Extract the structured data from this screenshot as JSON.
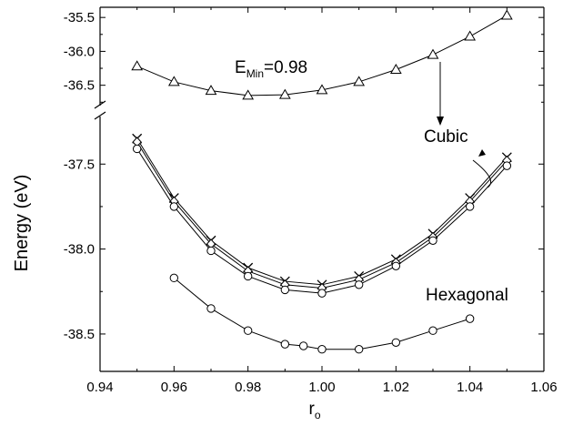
{
  "chart_data": {
    "type": "line",
    "xlabel": "r",
    "xlabel_sub": "o",
    "ylabel": "Energy (eV)",
    "x_ticks": [
      0.94,
      0.96,
      0.98,
      1.0,
      1.02,
      1.04,
      1.06
    ],
    "x_tick_labels": [
      "0.94",
      "0.96",
      "0.98",
      "1.00",
      "1.02",
      "1.04",
      "1.06"
    ],
    "xlim": [
      0.94,
      1.06
    ],
    "y_axis_break": true,
    "upper_ylim": [
      -36.8,
      -35.35
    ],
    "upper_ticks": [
      -35.5,
      -36.0,
      -36.5
    ],
    "upper_tick_labels": [
      "-35.5",
      "-36.0",
      "-36.5"
    ],
    "lower_ylim": [
      -38.72,
      -37.22
    ],
    "lower_ticks": [
      -37.5,
      -38.0,
      -38.5
    ],
    "lower_tick_labels": [
      "-37.5",
      "-38.0",
      "-38.5"
    ],
    "grid": false,
    "annotations": {
      "emin_prefix": "E",
      "emin_sub": "Min",
      "emin_suffix": "=0.98",
      "cubic": "Cubic",
      "hexagonal": "Hexagonal"
    },
    "series": [
      {
        "marker": "triangle",
        "panel": "upper",
        "x": [
          0.95,
          0.96,
          0.97,
          0.98,
          0.99,
          1.0,
          1.01,
          1.02,
          1.03,
          1.04,
          1.05
        ],
        "y": [
          -36.22,
          -36.45,
          -36.58,
          -36.65,
          -36.64,
          -36.57,
          -36.45,
          -36.27,
          -36.05,
          -35.78,
          -35.47
        ]
      },
      {
        "marker": "x",
        "panel": "lower",
        "x": [
          0.95,
          0.96,
          0.97,
          0.98,
          0.99,
          1.0,
          1.01,
          1.02,
          1.03,
          1.04,
          1.05
        ],
        "y": [
          -37.35,
          -37.7,
          -37.95,
          -38.11,
          -38.19,
          -38.21,
          -38.16,
          -38.06,
          -37.91,
          -37.7,
          -37.46
        ]
      },
      {
        "marker": "diamond",
        "panel": "lower",
        "x": [
          0.95,
          0.96,
          0.97,
          0.98,
          0.99,
          1.0,
          1.01,
          1.02,
          1.03,
          1.04,
          1.05
        ],
        "y": [
          -37.37,
          -37.72,
          -37.97,
          -38.13,
          -38.21,
          -38.23,
          -38.18,
          -38.08,
          -37.93,
          -37.72,
          -37.48
        ]
      },
      {
        "marker": "circle",
        "panel": "lower",
        "x": [
          0.95,
          0.96,
          0.97,
          0.98,
          0.99,
          1.0,
          1.01,
          1.02,
          1.03,
          1.04,
          1.05
        ],
        "y": [
          -37.41,
          -37.75,
          -38.01,
          -38.16,
          -38.24,
          -38.26,
          -38.21,
          -38.1,
          -37.95,
          -37.75,
          -37.51
        ]
      },
      {
        "marker": "circle",
        "panel": "lower",
        "x": [
          0.96,
          0.97,
          0.98,
          0.99,
          0.995,
          1.0,
          1.01,
          1.02,
          1.03,
          1.04
        ],
        "y": [
          -38.17,
          -38.35,
          -38.48,
          -38.56,
          -38.57,
          -38.59,
          -38.59,
          -38.55,
          -38.48,
          -38.41
        ]
      }
    ]
  }
}
